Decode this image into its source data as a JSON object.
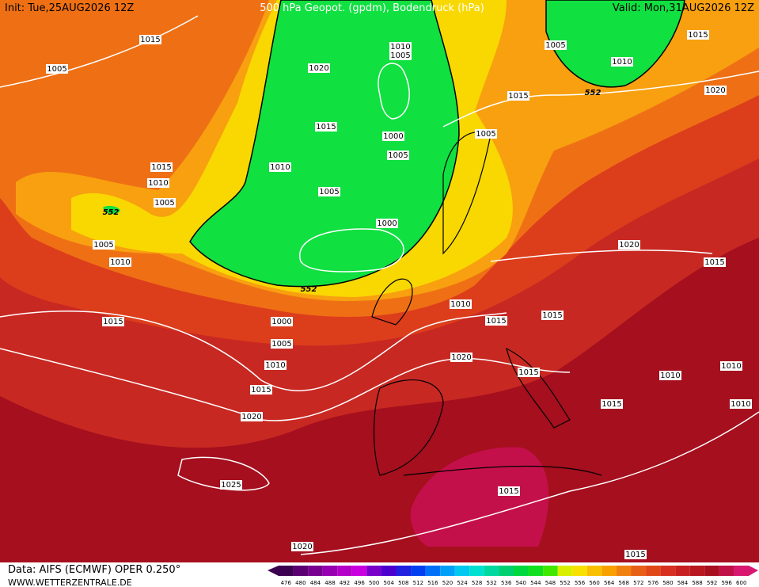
{
  "header": {
    "init": "Init: Tue,25AUG2026 12Z",
    "title": "500 hPa Geopot. (gpdm), Bodendruck (hPa)",
    "valid": "Valid: Mon,31AUG2026 12Z"
  },
  "footer": {
    "source": "Data: AIFS (ECMWF) OPER 0.250°",
    "site": "WWW.WETTERZENTRALE.DE"
  },
  "contour_labels": [
    552,
    552,
    552
  ],
  "isobar_labels": [
    1015,
    1005,
    1020,
    1010,
    1005,
    1015,
    1000,
    1005,
    1010,
    1015,
    1010,
    1005,
    1005,
    1000,
    1005,
    1010,
    1015,
    1000,
    1005,
    1010,
    1015,
    1020,
    1025,
    1020,
    1015,
    1015,
    1010,
    1015,
    1015,
    1020,
    1015,
    1015,
    1010,
    1010,
    1010,
    1015,
    1020,
    1015,
    1005,
    1005,
    1010,
    1015,
    1020
  ],
  "colorbar": {
    "ticks": [
      476,
      480,
      484,
      488,
      492,
      496,
      500,
      504,
      508,
      512,
      516,
      520,
      524,
      528,
      532,
      536,
      540,
      544,
      548,
      552,
      556,
      560,
      564,
      568,
      572,
      576,
      580,
      584,
      588,
      592,
      596,
      600
    ],
    "colors": [
      "#3c0050",
      "#5a0070",
      "#780090",
      "#9600b0",
      "#b400c8",
      "#c800e0",
      "#7800c8",
      "#4b00d0",
      "#2020e0",
      "#0040f0",
      "#0070f8",
      "#00a0f8",
      "#00c8f0",
      "#00e0d0",
      "#00d8a0",
      "#00d070",
      "#00d840",
      "#10e020",
      "#40e800",
      "#d8f000",
      "#f8e000",
      "#f8c000",
      "#f8a000",
      "#f08010",
      "#e86018",
      "#e04818",
      "#d83020",
      "#c82020",
      "#b81820",
      "#a81020",
      "#c01048",
      "#d81870"
    ]
  }
}
